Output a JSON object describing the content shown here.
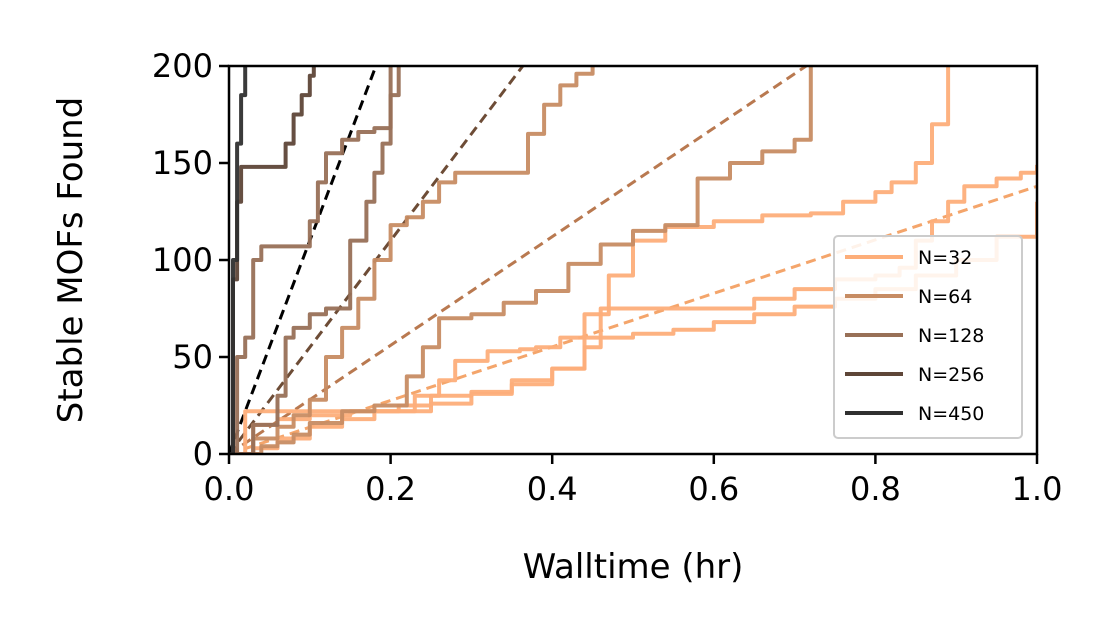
{
  "chart_data": {
    "type": "line",
    "title": "",
    "xlabel": "Walltime (hr)",
    "ylabel": "Stable MOFs Found",
    "xlim": [
      0,
      1.0
    ],
    "ylim": [
      0,
      200
    ],
    "xticks": [
      0.0,
      0.2,
      0.4,
      0.6,
      0.8,
      1.0
    ],
    "xtick_labels": [
      "0.0",
      "0.2",
      "0.4",
      "0.6",
      "0.8",
      "1.0"
    ],
    "yticks": [
      0,
      50,
      100,
      150,
      200
    ],
    "ytick_labels": [
      "0",
      "50",
      "100",
      "150",
      "200"
    ],
    "grid": false,
    "legend_position": "lower-right",
    "legend": [
      {
        "label": "N=32",
        "color": "#fdae7a"
      },
      {
        "label": "N=64",
        "color": "#c78c63"
      },
      {
        "label": "N=128",
        "color": "#987057"
      },
      {
        "label": "N=256",
        "color": "#5e4638"
      },
      {
        "label": "N=450",
        "color": "#303030"
      }
    ],
    "series": [
      {
        "name": "N=32",
        "color": "#fdae7a",
        "points": [
          [
            0.0,
            0
          ],
          [
            0.02,
            22
          ],
          [
            0.05,
            22
          ],
          [
            0.1,
            22
          ],
          [
            0.15,
            22
          ],
          [
            0.2,
            22
          ],
          [
            0.23,
            22
          ],
          [
            0.23,
            30
          ],
          [
            0.26,
            38
          ],
          [
            0.28,
            48
          ],
          [
            0.32,
            53
          ],
          [
            0.36,
            54
          ],
          [
            0.38,
            55
          ],
          [
            0.41,
            60
          ],
          [
            0.44,
            72
          ],
          [
            0.47,
            92
          ],
          [
            0.5,
            110
          ],
          [
            0.54,
            117
          ],
          [
            0.6,
            120
          ],
          [
            0.66,
            123
          ],
          [
            0.72,
            124
          ],
          [
            0.76,
            130
          ],
          [
            0.8,
            135
          ],
          [
            0.82,
            140
          ],
          [
            0.85,
            150
          ],
          [
            0.87,
            170
          ],
          [
            0.89,
            200
          ]
        ]
      },
      {
        "name": "N=32",
        "color": "#fdae7a",
        "points": [
          [
            0.0,
            0
          ],
          [
            0.03,
            15
          ],
          [
            0.06,
            18
          ],
          [
            0.1,
            20
          ],
          [
            0.15,
            22
          ],
          [
            0.2,
            22
          ],
          [
            0.25,
            26
          ],
          [
            0.3,
            31
          ],
          [
            0.35,
            36
          ],
          [
            0.4,
            44
          ],
          [
            0.42,
            44
          ],
          [
            0.44,
            60
          ],
          [
            0.46,
            75
          ],
          [
            0.6,
            75
          ],
          [
            0.65,
            80
          ],
          [
            0.7,
            85
          ],
          [
            0.75,
            90
          ],
          [
            0.8,
            92
          ],
          [
            0.83,
            96
          ],
          [
            0.85,
            110
          ],
          [
            0.87,
            120
          ],
          [
            0.89,
            130
          ],
          [
            0.91,
            138
          ],
          [
            0.95,
            142
          ],
          [
            0.98,
            145
          ],
          [
            1.0,
            149
          ]
        ]
      },
      {
        "name": "N=32",
        "color": "#fdae7a",
        "points": [
          [
            0.0,
            0
          ],
          [
            0.03,
            3
          ],
          [
            0.06,
            8
          ],
          [
            0.1,
            14
          ],
          [
            0.14,
            18
          ],
          [
            0.18,
            22
          ],
          [
            0.21,
            25
          ],
          [
            0.25,
            30
          ],
          [
            0.3,
            32
          ],
          [
            0.35,
            38
          ],
          [
            0.4,
            44
          ],
          [
            0.42,
            44
          ],
          [
            0.44,
            55
          ],
          [
            0.46,
            60
          ],
          [
            0.5,
            62
          ],
          [
            0.55,
            64
          ],
          [
            0.6,
            68
          ],
          [
            0.65,
            72
          ],
          [
            0.7,
            76
          ],
          [
            0.75,
            80
          ],
          [
            0.8,
            85
          ],
          [
            0.85,
            92
          ],
          [
            0.9,
            100
          ],
          [
            0.95,
            112
          ],
          [
            1.0,
            130
          ]
        ]
      },
      {
        "name": "N=64",
        "color": "#c78c63",
        "points": [
          [
            0.0,
            0
          ],
          [
            0.04,
            4
          ],
          [
            0.06,
            6
          ],
          [
            0.08,
            10
          ],
          [
            0.1,
            16
          ],
          [
            0.14,
            22
          ],
          [
            0.18,
            25
          ],
          [
            0.2,
            25
          ],
          [
            0.22,
            40
          ],
          [
            0.24,
            55
          ],
          [
            0.26,
            70
          ],
          [
            0.3,
            72
          ],
          [
            0.34,
            78
          ],
          [
            0.38,
            84
          ],
          [
            0.42,
            98
          ],
          [
            0.46,
            108
          ],
          [
            0.5,
            115
          ],
          [
            0.54,
            118
          ],
          [
            0.58,
            142
          ],
          [
            0.62,
            150
          ],
          [
            0.66,
            156
          ],
          [
            0.7,
            162
          ],
          [
            0.72,
            200
          ]
        ]
      },
      {
        "name": "N=64",
        "color": "#c78c63",
        "points": [
          [
            0.0,
            0
          ],
          [
            0.03,
            8
          ],
          [
            0.06,
            14
          ],
          [
            0.08,
            20
          ],
          [
            0.1,
            28
          ],
          [
            0.12,
            50
          ],
          [
            0.14,
            65
          ],
          [
            0.16,
            80
          ],
          [
            0.18,
            100
          ],
          [
            0.2,
            118
          ],
          [
            0.22,
            122
          ],
          [
            0.24,
            130
          ],
          [
            0.26,
            140
          ],
          [
            0.28,
            145
          ],
          [
            0.32,
            145
          ],
          [
            0.35,
            145
          ],
          [
            0.37,
            165
          ],
          [
            0.39,
            180
          ],
          [
            0.41,
            190
          ],
          [
            0.43,
            196
          ],
          [
            0.45,
            200
          ]
        ]
      },
      {
        "name": "N=128",
        "color": "#987057",
        "points": [
          [
            0.0,
            0
          ],
          [
            0.01,
            50
          ],
          [
            0.02,
            60
          ],
          [
            0.03,
            100
          ],
          [
            0.04,
            107
          ],
          [
            0.09,
            107
          ],
          [
            0.1,
            120
          ],
          [
            0.11,
            140
          ],
          [
            0.12,
            155
          ],
          [
            0.14,
            162
          ],
          [
            0.16,
            166
          ],
          [
            0.18,
            168
          ],
          [
            0.2,
            185
          ],
          [
            0.21,
            200
          ]
        ]
      },
      {
        "name": "N=128",
        "color": "#987057",
        "points": [
          [
            0.0,
            0
          ],
          [
            0.03,
            15
          ],
          [
            0.06,
            30
          ],
          [
            0.07,
            60
          ],
          [
            0.08,
            65
          ],
          [
            0.1,
            72
          ],
          [
            0.12,
            75
          ],
          [
            0.15,
            110
          ],
          [
            0.17,
            130
          ],
          [
            0.18,
            145
          ],
          [
            0.19,
            160
          ],
          [
            0.2,
            200
          ]
        ]
      },
      {
        "name": "N=256",
        "color": "#5e4638",
        "points": [
          [
            0.0,
            0
          ],
          [
            0.005,
            90
          ],
          [
            0.01,
            130
          ],
          [
            0.015,
            148
          ],
          [
            0.05,
            148
          ],
          [
            0.06,
            148
          ],
          [
            0.07,
            160
          ],
          [
            0.08,
            175
          ],
          [
            0.09,
            185
          ],
          [
            0.1,
            195
          ],
          [
            0.105,
            200
          ]
        ]
      },
      {
        "name": "N=450",
        "color": "#303030",
        "points": [
          [
            0.0,
            0
          ],
          [
            0.005,
            100
          ],
          [
            0.01,
            160
          ],
          [
            0.015,
            185
          ],
          [
            0.02,
            200
          ]
        ]
      }
    ],
    "trend_lines": [
      {
        "name": "N=32",
        "color": "#f4a56b",
        "slope": 138
      },
      {
        "name": "N=64",
        "color": "#b97950",
        "slope": 280
      },
      {
        "name": "N=128",
        "color": "#6d4c36",
        "slope": 550
      },
      {
        "name": "N=450",
        "color": "#000000",
        "slope": 1100
      }
    ]
  }
}
